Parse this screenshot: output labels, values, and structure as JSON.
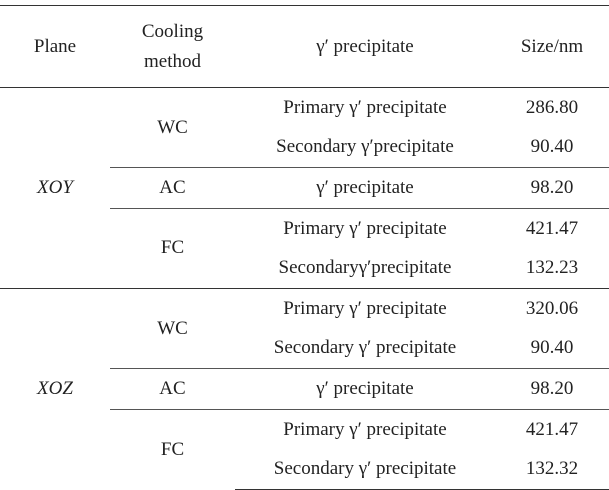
{
  "header": {
    "plane": "Plane",
    "cooling": [
      "Cooling",
      "method"
    ],
    "precipitate": "γ′ precipitate",
    "size": "Size/nm"
  },
  "groups": [
    {
      "plane": "XOY",
      "methods": [
        {
          "method": "WC",
          "rows": [
            {
              "precipitate": "Primary γ′ precipitate",
              "size": "286.80"
            },
            {
              "precipitate": "Secondary γ′precipitate",
              "size": "90.40"
            }
          ]
        },
        {
          "method": "AC",
          "rows": [
            {
              "precipitate": "γ′ precipitate",
              "size": "98.20"
            }
          ]
        },
        {
          "method": "FC",
          "rows": [
            {
              "precipitate": "Primary γ′ precipitate",
              "size": "421.47"
            },
            {
              "precipitate": "Secondaryγ′precipitate",
              "size": "132.23"
            }
          ]
        }
      ]
    },
    {
      "plane": "XOZ",
      "methods": [
        {
          "method": "WC",
          "rows": [
            {
              "precipitate": "Primary γ′ precipitate",
              "size": "320.06"
            },
            {
              "precipitate": "Secondary γ′ precipitate",
              "size": "90.40"
            }
          ]
        },
        {
          "method": "AC",
          "rows": [
            {
              "precipitate": "γ′ precipitate",
              "size": "98.20"
            }
          ]
        },
        {
          "method": "FC",
          "rows": [
            {
              "precipitate": "Primary γ′ precipitate",
              "size": "421.47"
            },
            {
              "precipitate": "Secondary γ′ precipitate",
              "size": "132.32"
            }
          ]
        }
      ]
    }
  ]
}
